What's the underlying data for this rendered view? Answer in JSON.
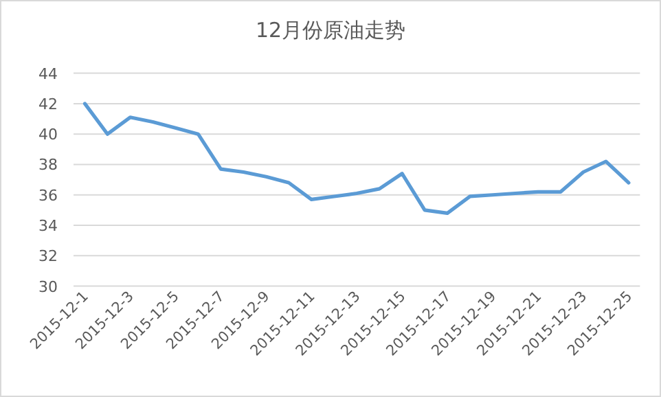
{
  "chart_data": {
    "type": "line",
    "title": "12月份原油走势",
    "categories": [
      "2015-12-1",
      null,
      "2015-12-3",
      null,
      "2015-12-5",
      null,
      "2015-12-7",
      null,
      "2015-12-9",
      null,
      "2015-12-11",
      null,
      "2015-12-13",
      null,
      "2015-12-15",
      null,
      "2015-12-17",
      null,
      "2015-12-19",
      null,
      "2015-12-21",
      null,
      "2015-12-23",
      null,
      "2015-12-25"
    ],
    "series": [
      {
        "color": "#5b9bd5",
        "values": [
          42.0,
          40.0,
          41.1,
          40.8,
          40.4,
          40.0,
          37.7,
          37.5,
          37.2,
          36.8,
          35.7,
          35.9,
          36.1,
          36.4,
          37.4,
          35.0,
          34.8,
          35.9,
          36.0,
          36.1,
          36.2,
          36.2,
          37.5,
          38.2,
          36.8
        ]
      }
    ],
    "ylim": [
      30,
      44
    ],
    "yticks": [
      30,
      32,
      34,
      36,
      38,
      40,
      42,
      44
    ],
    "grid": "y",
    "marker": "none",
    "line_style": "solid"
  }
}
